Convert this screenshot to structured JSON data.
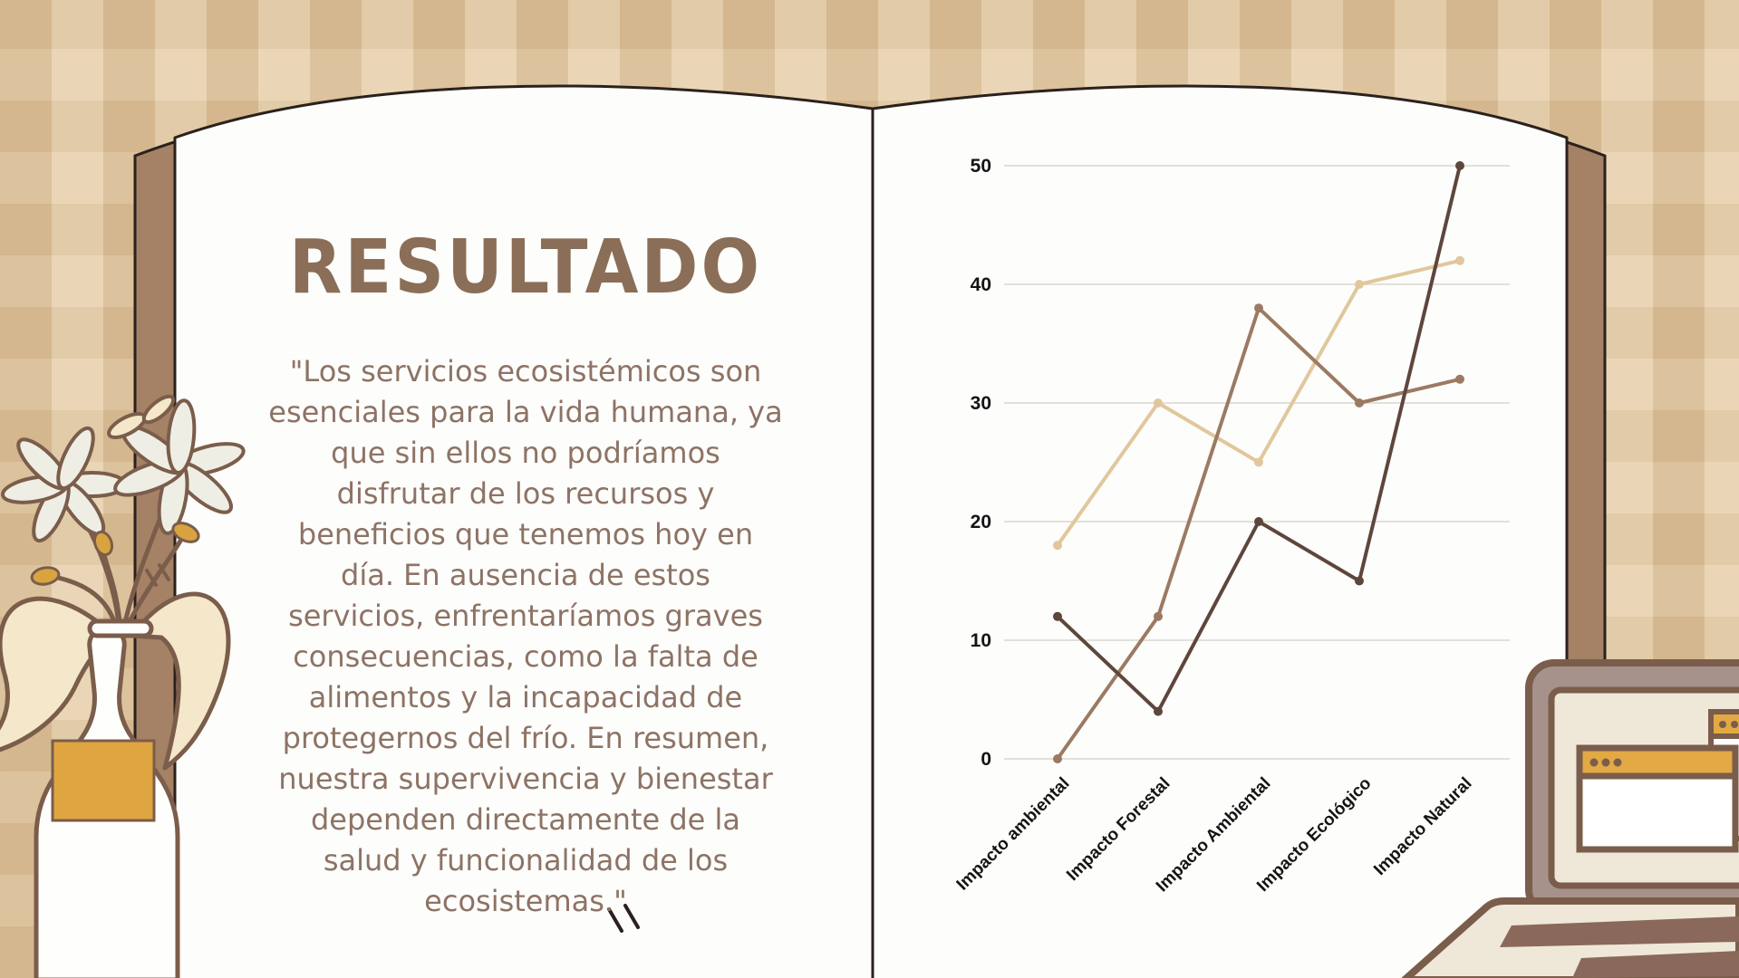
{
  "slide": {
    "title": "RESULTADO",
    "body": "\"Los servicios ecosistémicos son\nesenciales para la vida humana, ya\nque sin ellos no podríamos\ndisfrutar de los recursos y\nbeneficios que tenemos hoy en\ndía. En ausencia de estos\nservicios, enfrentaríamos graves\nconsecuencias, como la falta de\nalimentos y la incapacidad de\nprotegernos del frío. En resumen,\nnuestra supervivencia y bienestar\ndependen directamente de la\nsalud y funcionalidad de los\necosistemas.\""
  },
  "chart_data": {
    "type": "line",
    "title": "",
    "xlabel": "",
    "ylabel": "",
    "categories": [
      "Impacto ambiental",
      "Impacto Forestal",
      "Impacto Ambiental",
      "Impacto Ecológico",
      "Impacto Natural"
    ],
    "series": [
      {
        "name": "tan",
        "color": "#e0c79c",
        "values": [
          18,
          30,
          25,
          40,
          42
        ]
      },
      {
        "name": "medium-brown",
        "color": "#9b7a63",
        "values": [
          0,
          12,
          38,
          30,
          32
        ]
      },
      {
        "name": "dark-brown",
        "color": "#5e463c",
        "values": [
          12,
          4,
          20,
          15,
          50
        ]
      }
    ],
    "yticks": [
      0,
      10,
      20,
      30,
      40,
      50
    ],
    "ylim": [
      0,
      50
    ],
    "grid": true,
    "grid_color": "#d9d6d0",
    "tick_color": "#141414",
    "legend": "none"
  },
  "palette": {
    "background": "#e3c9a2",
    "book_cover": "#a58166",
    "page_white": "#fdfdfb",
    "outline_dark": "#2b211c",
    "title_brown": "#8a6e58",
    "body_brown": "#8d7365",
    "illustration_outline": "#7b5d4b",
    "accent_yellow": "#dfa540",
    "laptop_screen_taupe": "#a6928a",
    "cream": "#efe8d9"
  }
}
